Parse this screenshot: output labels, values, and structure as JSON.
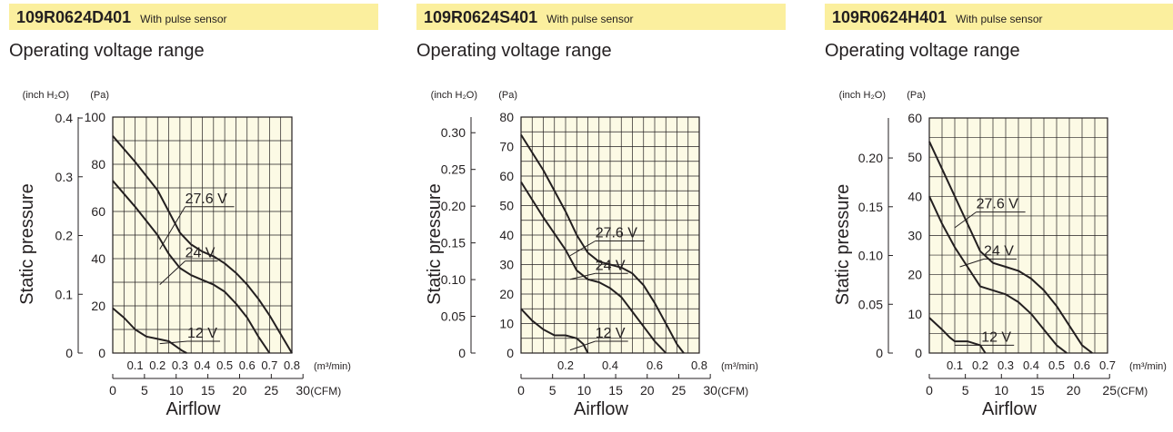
{
  "chart_data": [
    {
      "type": "line",
      "model": "109R0624D401",
      "sensor_label": "With pulse sensor",
      "subtitle": "Operating voltage range",
      "ylabel": "Static pressure",
      "xlabel": "Airflow",
      "y_pa_unit": "(Pa)",
      "y_in_unit": "(inch H₂O)",
      "x_m3_unit": "(m³/min)",
      "x_cfm_unit": "(CFM)",
      "ylim": [
        0,
        100
      ],
      "xlim": [
        0,
        0.8
      ],
      "y_pa_ticks": [
        "0",
        "20",
        "40",
        "60",
        "80",
        "100"
      ],
      "y_in_ticks": [
        "0",
        "0.1",
        "0.2",
        "0.3",
        "0.4"
      ],
      "x_m3_ticks": [
        "0.1",
        "0.2",
        "0.3",
        "0.4",
        "0.5",
        "0.6",
        "0.7",
        "0.8"
      ],
      "x_cfm_ticks": [
        "0",
        "5",
        "10",
        "15",
        "20",
        "25",
        "30"
      ],
      "grid": true,
      "background": "#fcfae5",
      "series": [
        {
          "name": "27.6 V",
          "x": [
            0,
            0.1,
            0.2,
            0.25,
            0.3,
            0.35,
            0.4,
            0.45,
            0.5,
            0.55,
            0.6,
            0.65,
            0.7,
            0.75,
            0.8
          ],
          "y": [
            92,
            81,
            69,
            60,
            51,
            46,
            43,
            41,
            38,
            34,
            29,
            23,
            16,
            8,
            0
          ]
        },
        {
          "name": "24 V",
          "x": [
            0,
            0.1,
            0.2,
            0.25,
            0.3,
            0.35,
            0.4,
            0.45,
            0.5,
            0.55,
            0.6,
            0.65,
            0.7
          ],
          "y": [
            73,
            62,
            50,
            42,
            36,
            33,
            31,
            29,
            26,
            21,
            15,
            7,
            0
          ]
        },
        {
          "name": "12 V",
          "x": [
            0,
            0.05,
            0.1,
            0.15,
            0.2,
            0.25,
            0.28,
            0.31,
            0.33
          ],
          "y": [
            19,
            15,
            10,
            7,
            6,
            5,
            3,
            1,
            0
          ]
        }
      ],
      "labels": [
        {
          "series": "27.6 V",
          "text": "27.6 V",
          "at": [
            0.25,
            62
          ]
        },
        {
          "series": "24 V",
          "text": "24 V",
          "at": [
            0.25,
            39
          ]
        },
        {
          "series": "12 V",
          "text": "12 V",
          "at": [
            0.26,
            5
          ]
        }
      ]
    },
    {
      "type": "line",
      "model": "109R0624S401",
      "sensor_label": "With pulse sensor",
      "subtitle": "Operating voltage range",
      "ylabel": "Static pressure",
      "xlabel": "Airflow",
      "y_pa_unit": "(Pa)",
      "y_in_unit": "(inch H₂O)",
      "x_m3_unit": "(m³/min)",
      "x_cfm_unit": "(CFM)",
      "ylim": [
        0,
        80
      ],
      "xlim": [
        0,
        0.8
      ],
      "y_pa_ticks": [
        "0",
        "10",
        "20",
        "30",
        "40",
        "50",
        "60",
        "70",
        "80"
      ],
      "y_in_ticks": [
        "0",
        "0.05",
        "0.10",
        "0.15",
        "0.20",
        "0.25",
        "0.30"
      ],
      "x_m3_ticks": [
        "0.2",
        "0.4",
        "0.6",
        "0.8"
      ],
      "x_cfm_ticks": [
        "0",
        "5",
        "10",
        "15",
        "20",
        "25",
        "30"
      ],
      "grid": true,
      "background": "#fcfae5",
      "series": [
        {
          "name": "27.6 V",
          "x": [
            0,
            0.1,
            0.2,
            0.25,
            0.3,
            0.35,
            0.4,
            0.45,
            0.5,
            0.55,
            0.6,
            0.65,
            0.7,
            0.73
          ],
          "y": [
            74,
            62,
            48,
            40,
            34,
            31,
            30,
            29,
            27,
            23,
            17,
            10,
            3,
            0
          ]
        },
        {
          "name": "24 V",
          "x": [
            0,
            0.1,
            0.2,
            0.25,
            0.3,
            0.35,
            0.4,
            0.45,
            0.5,
            0.55,
            0.6,
            0.65
          ],
          "y": [
            58,
            46,
            35,
            28,
            25,
            24,
            22,
            19,
            14,
            9,
            4,
            0
          ]
        },
        {
          "name": "12 V",
          "x": [
            0,
            0.05,
            0.1,
            0.15,
            0.2,
            0.25,
            0.28,
            0.3
          ],
          "y": [
            15,
            11,
            8,
            6,
            6,
            5,
            3,
            0
          ]
        }
      ],
      "labels": [
        {
          "series": "27.6 V",
          "text": "27.6 V",
          "at": [
            0.26,
            38
          ]
        },
        {
          "series": "24 V",
          "text": "24 V",
          "at": [
            0.26,
            27
          ]
        },
        {
          "series": "12 V",
          "text": "12 V",
          "at": [
            0.26,
            4
          ]
        }
      ]
    },
    {
      "type": "line",
      "model": "109R0624H401",
      "sensor_label": "With pulse sensor",
      "subtitle": "Operating voltage range",
      "ylabel": "Static pressure",
      "xlabel": "Airflow",
      "y_pa_unit": "(Pa)",
      "y_in_unit": "(inch H₂O)",
      "x_m3_unit": "(m³/min)",
      "x_cfm_unit": "(CFM)",
      "ylim": [
        0,
        60
      ],
      "xlim": [
        0,
        0.7
      ],
      "y_pa_ticks": [
        "0",
        "10",
        "20",
        "30",
        "40",
        "50",
        "60"
      ],
      "y_in_ticks": [
        "0",
        "0.05",
        "0.10",
        "0.15",
        "0.20"
      ],
      "x_m3_ticks": [
        "0.1",
        "0.2",
        "0.3",
        "0.4",
        "0.5",
        "0.6",
        "0.7"
      ],
      "x_cfm_ticks": [
        "0",
        "5",
        "10",
        "15",
        "20",
        "25"
      ],
      "grid": true,
      "background": "#fcfae5",
      "series": [
        {
          "name": "27.6 V",
          "x": [
            0,
            0.05,
            0.1,
            0.15,
            0.2,
            0.25,
            0.3,
            0.35,
            0.4,
            0.45,
            0.5,
            0.55,
            0.6,
            0.64
          ],
          "y": [
            54,
            47,
            40,
            33,
            26,
            23,
            22,
            21,
            19,
            16,
            12,
            7,
            2,
            0
          ]
        },
        {
          "name": "24 V",
          "x": [
            0,
            0.05,
            0.1,
            0.15,
            0.2,
            0.25,
            0.3,
            0.35,
            0.4,
            0.45,
            0.5,
            0.54
          ],
          "y": [
            40,
            33,
            27,
            22,
            17,
            16,
            15,
            13,
            10,
            6,
            2,
            0
          ]
        },
        {
          "name": "12 V",
          "x": [
            0,
            0.05,
            0.08,
            0.1,
            0.15,
            0.2,
            0.22
          ],
          "y": [
            9,
            6,
            4,
            3,
            3,
            2,
            0
          ]
        }
      ],
      "labels": [
        {
          "series": "27.6 V",
          "text": "27.6 V",
          "at": [
            0.12,
            36
          ]
        },
        {
          "series": "24 V",
          "text": "24 V",
          "at": [
            0.15,
            24
          ]
        },
        {
          "series": "12 V",
          "text": "12 V",
          "at": [
            0.14,
            2
          ]
        }
      ]
    }
  ]
}
